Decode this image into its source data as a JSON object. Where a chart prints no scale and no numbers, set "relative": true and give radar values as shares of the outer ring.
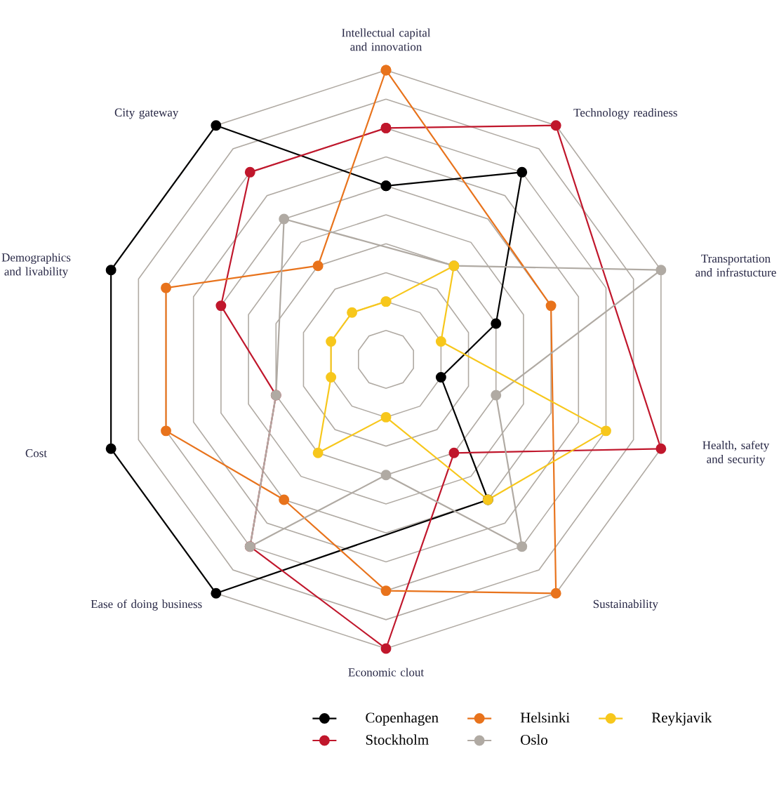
{
  "chart_data": {
    "type": "radar",
    "relative": true,
    "grid": true,
    "legend": "bottom",
    "marker": "circle",
    "line_style": "solid",
    "categories": [
      "Intellectual capital and innovation",
      "Technology readiness",
      "Transportation and infrastucture",
      "Health, safety and security",
      "Sustainability",
      "Economic clout",
      "Ease of doing business",
      "Cost",
      "Demographics and livability",
      "City gateway"
    ],
    "series": [
      {
        "name": "Copenhagen",
        "color": "#000000",
        "values": [
          0.6,
          0.8,
          0.4,
          0.2,
          0.6,
          null,
          1.0,
          1.0,
          1.0,
          1.0
        ]
      },
      {
        "name": "Stockholm",
        "color": "#c0172c",
        "values": [
          0.8,
          1.0,
          null,
          1.0,
          0.4,
          1.0,
          0.8,
          0.4,
          0.6,
          0.8
        ]
      },
      {
        "name": "Helsinki",
        "color": "#e8731c",
        "values": [
          1.0,
          null,
          0.6,
          null,
          1.0,
          0.8,
          0.6,
          0.8,
          0.8,
          0.4
        ]
      },
      {
        "name": "Oslo",
        "color": "#b0aaa3",
        "values": [
          null,
          0.4,
          1.0,
          0.4,
          0.8,
          0.4,
          0.8,
          0.4,
          null,
          0.6
        ]
      },
      {
        "name": "Reykjavik",
        "color": "#f7c71c",
        "values": [
          0.2,
          0.4,
          0.2,
          0.8,
          0.6,
          0.2,
          0.4,
          0.2,
          0.2,
          0.2
        ]
      }
    ]
  }
}
